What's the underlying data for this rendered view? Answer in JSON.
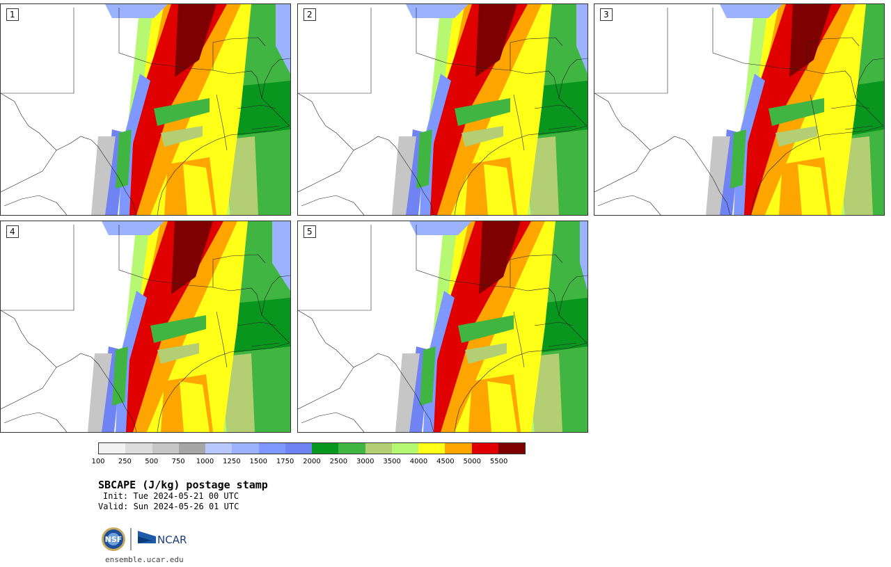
{
  "panels": [
    {
      "label": "1",
      "variant": 0
    },
    {
      "label": "2",
      "variant": 1
    },
    {
      "label": "3",
      "variant": 2
    },
    {
      "label": "4",
      "variant": 3
    },
    {
      "label": "5",
      "variant": 4
    }
  ],
  "colorbar": {
    "colors": [
      "#f2f2f2",
      "#dcdcdc",
      "#c6c6c6",
      "#a6a6a6",
      "#b8c8ff",
      "#9bb2ff",
      "#7f98ff",
      "#6f84f2",
      "#09961e",
      "#41b541",
      "#b3ce73",
      "#b6f871",
      "#ffff18",
      "#ffa500",
      "#e10000",
      "#7f0000"
    ],
    "ticks": [
      "100",
      "250",
      "500",
      "750",
      "1000",
      "1250",
      "1500",
      "1750",
      "2000",
      "2500",
      "3000",
      "3500",
      "4000",
      "4500",
      "5000",
      "5500"
    ]
  },
  "title": "SBCAPE (J/kg) postage stamp",
  "init": "Init: Tue 2024-05-21 00 UTC",
  "valid": "Valid: Sun 2024-05-26 01 UTC",
  "logos": {
    "nsf": "NSF",
    "ncar": "NCAR"
  },
  "org_url": "ensemble.ucar.edu"
}
